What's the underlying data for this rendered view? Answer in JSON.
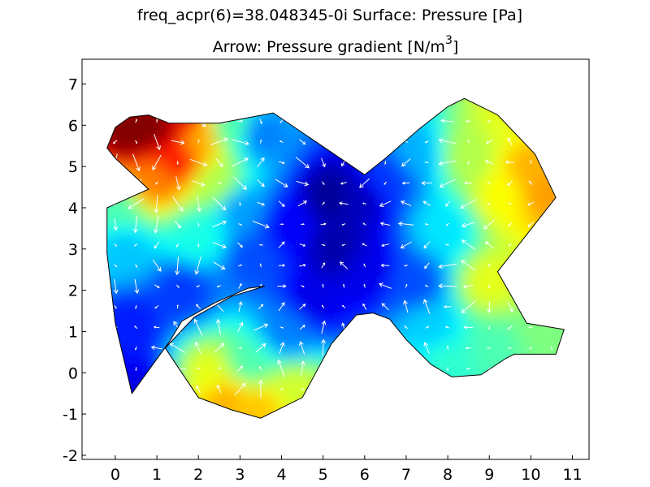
{
  "chart_data": {
    "type": "heatmap",
    "title_line1": "freq_acpr(6)=38.048345-0i     Surface: Pressure [Pa]",
    "title_line2_main": "Arrow: Pressure gradient [N/m",
    "title_line2_sup": "3",
    "title_line2_end": "]",
    "xlabel": "",
    "ylabel": "",
    "xlim": [
      -0.8,
      11.4
    ],
    "ylim": [
      -2.1,
      7.6
    ],
    "x_ticks": [
      "0",
      "1",
      "2",
      "3",
      "4",
      "5",
      "6",
      "7",
      "8",
      "9",
      "10",
      "11"
    ],
    "y_ticks": [
      "7",
      "6",
      "5",
      "4",
      "3",
      "2",
      "1",
      "0",
      "-1",
      "-2"
    ],
    "grid": false,
    "colormap": "jet",
    "arrow_color": "#ffffff",
    "domain_outline": [
      [
        -0.2,
        5.45
      ],
      [
        0.0,
        5.95
      ],
      [
        0.35,
        6.2
      ],
      [
        0.8,
        6.25
      ],
      [
        1.3,
        6.05
      ],
      [
        2.5,
        6.05
      ],
      [
        3.8,
        6.3
      ],
      [
        6.0,
        4.8
      ],
      [
        6.5,
        5.2
      ],
      [
        7.3,
        5.9
      ],
      [
        8.0,
        6.45
      ],
      [
        8.4,
        6.65
      ],
      [
        9.2,
        6.25
      ],
      [
        10.1,
        5.3
      ],
      [
        10.6,
        4.25
      ],
      [
        9.2,
        2.45
      ],
      [
        9.9,
        1.2
      ],
      [
        10.8,
        1.05
      ],
      [
        10.6,
        0.45
      ],
      [
        9.6,
        0.45
      ],
      [
        9.4,
        0.35
      ],
      [
        8.8,
        -0.05
      ],
      [
        8.1,
        -0.1
      ],
      [
        7.6,
        0.2
      ],
      [
        7.0,
        0.8
      ],
      [
        6.6,
        1.3
      ],
      [
        6.2,
        1.45
      ],
      [
        5.8,
        1.4
      ],
      [
        5.2,
        0.7
      ],
      [
        4.5,
        -0.6
      ],
      [
        3.5,
        -1.1
      ],
      [
        2.8,
        -0.9
      ],
      [
        2.0,
        -0.6
      ],
      [
        1.2,
        0.6
      ],
      [
        1.9,
        1.35
      ],
      [
        2.8,
        1.85
      ],
      [
        3.6,
        2.1
      ],
      [
        3.2,
        2.05
      ],
      [
        2.4,
        1.7
      ],
      [
        1.6,
        1.25
      ],
      [
        1.3,
        0.75
      ],
      [
        0.4,
        -0.5
      ],
      [
        0.0,
        1.2
      ],
      [
        -0.2,
        2.9
      ],
      [
        -0.2,
        4.0
      ],
      [
        0.8,
        4.45
      ],
      [
        0.0,
        5.2
      ]
    ],
    "pressure_field": [
      {
        "x": 0.4,
        "y": 5.8,
        "value": 1.0
      },
      {
        "x": 1.0,
        "y": 6.0,
        "value": 1.0
      },
      {
        "x": 1.5,
        "y": 5.2,
        "value": 0.85
      },
      {
        "x": 2.0,
        "y": 5.7,
        "value": 0.7
      },
      {
        "x": 2.4,
        "y": 4.6,
        "value": 0.55
      },
      {
        "x": 2.0,
        "y": 3.3,
        "value": 0.4
      },
      {
        "x": 0.0,
        "y": 4.0,
        "value": 0.45
      },
      {
        "x": 0.2,
        "y": 3.0,
        "value": 0.32
      },
      {
        "x": 0.4,
        "y": 1.2,
        "value": 0.15
      },
      {
        "x": 0.5,
        "y": -0.3,
        "value": 0.1
      },
      {
        "x": 1.6,
        "y": 2.0,
        "value": 0.18
      },
      {
        "x": 3.0,
        "y": 4.0,
        "value": 0.28
      },
      {
        "x": 3.3,
        "y": 2.8,
        "value": 0.2
      },
      {
        "x": 3.5,
        "y": 5.8,
        "value": 0.25
      },
      {
        "x": 4.2,
        "y": 3.6,
        "value": 0.12
      },
      {
        "x": 5.2,
        "y": 4.3,
        "value": 0.02
      },
      {
        "x": 5.3,
        "y": 3.0,
        "value": 0.04
      },
      {
        "x": 4.8,
        "y": 1.8,
        "value": 0.1
      },
      {
        "x": 6.0,
        "y": 2.5,
        "value": 0.1
      },
      {
        "x": 5.8,
        "y": 4.2,
        "value": 0.06
      },
      {
        "x": 6.6,
        "y": 4.8,
        "value": 0.18
      },
      {
        "x": 7.2,
        "y": 2.2,
        "value": 0.2
      },
      {
        "x": 7.2,
        "y": 5.3,
        "value": 0.3
      },
      {
        "x": 7.9,
        "y": 3.5,
        "value": 0.35
      },
      {
        "x": 7.6,
        "y": 1.1,
        "value": 0.33
      },
      {
        "x": 8.0,
        "y": 0.3,
        "value": 0.42
      },
      {
        "x": 8.5,
        "y": 5.3,
        "value": 0.55
      },
      {
        "x": 9.0,
        "y": 2.2,
        "value": 0.6
      },
      {
        "x": 9.3,
        "y": 4.3,
        "value": 0.62
      },
      {
        "x": 10.0,
        "y": 5.0,
        "value": 0.7
      },
      {
        "x": 10.3,
        "y": 4.4,
        "value": 0.72
      },
      {
        "x": 9.5,
        "y": 6.2,
        "value": 0.6
      },
      {
        "x": 10.3,
        "y": 1.0,
        "value": 0.5
      },
      {
        "x": 9.1,
        "y": 0.6,
        "value": 0.45
      },
      {
        "x": 4.1,
        "y": 1.0,
        "value": 0.25
      },
      {
        "x": 3.2,
        "y": 0.3,
        "value": 0.45
      },
      {
        "x": 2.3,
        "y": 0.0,
        "value": 0.6
      },
      {
        "x": 2.6,
        "y": -0.6,
        "value": 0.7
      },
      {
        "x": 3.5,
        "y": -0.9,
        "value": 0.68
      },
      {
        "x": 4.3,
        "y": -0.4,
        "value": 0.58
      },
      {
        "x": 1.6,
        "y": 6.1,
        "value": 0.9
      },
      {
        "x": 0.9,
        "y": 4.7,
        "value": 0.75
      },
      {
        "x": 2.8,
        "y": 6.0,
        "value": 0.45
      }
    ]
  }
}
